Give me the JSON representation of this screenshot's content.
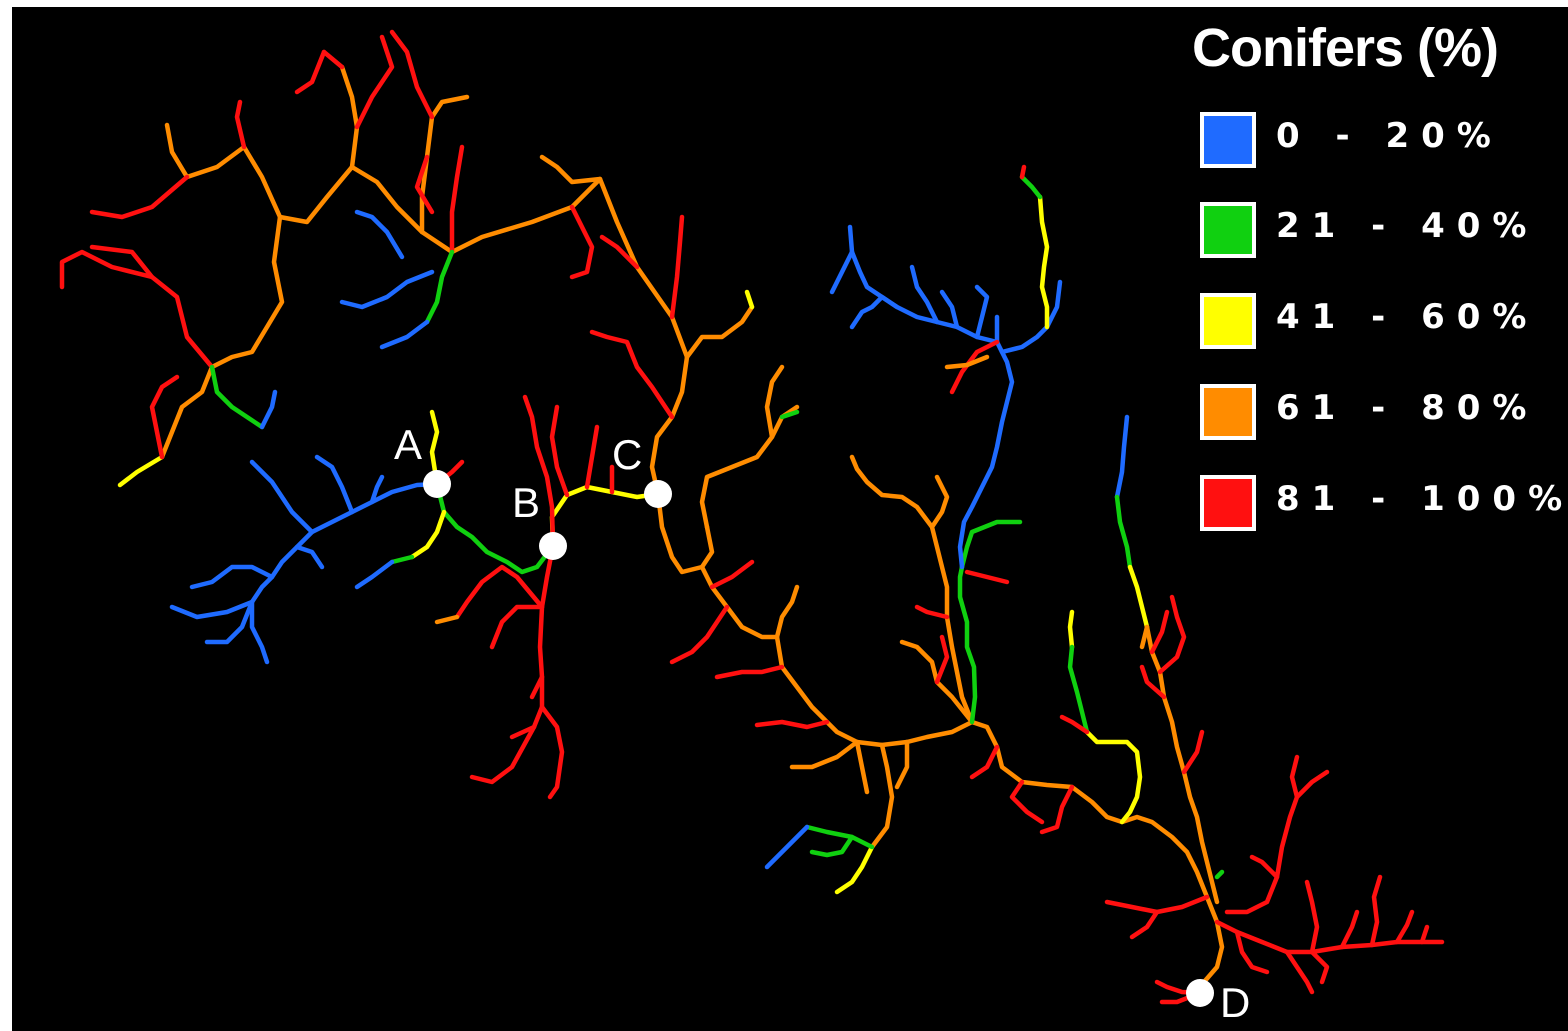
{
  "legend": {
    "title": "Conifers (%)",
    "items": [
      {
        "label": "0 - 20%",
        "color": "#1f6bff"
      },
      {
        "label": "21 - 40%",
        "color": "#10d010"
      },
      {
        "label": "41 - 60%",
        "color": "#ffff00"
      },
      {
        "label": "61 - 80%",
        "color": "#ff8c00"
      },
      {
        "label": "81 - 100%",
        "color": "#ff1010"
      }
    ]
  },
  "points": {
    "a": "A",
    "b": "B",
    "c": "C",
    "d": "D"
  },
  "background_color": "#000000",
  "point_color": "#ffffff"
}
